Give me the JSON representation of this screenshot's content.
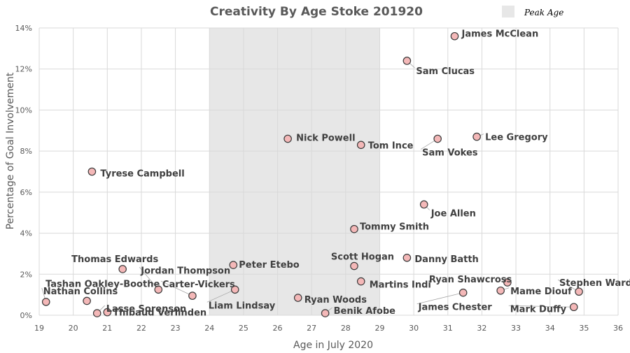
{
  "chart_data": {
    "type": "scatter",
    "title": "Creativity By Age Stoke 201920",
    "xlabel": "Age in July 2020",
    "ylabel": "Percentage of Goal Involvement",
    "xlim": [
      19,
      36
    ],
    "ylim": [
      0,
      14
    ],
    "x_ticks": [
      19,
      20,
      21,
      22,
      23,
      24,
      25,
      26,
      27,
      28,
      29,
      30,
      31,
      32,
      33,
      34,
      35,
      36
    ],
    "y_ticks": [
      0,
      2,
      4,
      6,
      8,
      10,
      12,
      14
    ],
    "y_tick_labels": [
      "0%",
      "2%",
      "4%",
      "6%",
      "8%",
      "10%",
      "12%",
      "14%"
    ],
    "grid": true,
    "legend": {
      "label": "Peak Age",
      "position": "top-right",
      "color": "#e7e7e7"
    },
    "peak_age_band": [
      24,
      29
    ],
    "point_color": "#f4b8b8",
    "points": [
      {
        "name": "James McClean",
        "x": 31.2,
        "y": 13.6
      },
      {
        "name": "Sam Clucas",
        "x": 29.8,
        "y": 12.4
      },
      {
        "name": "Lee Gregory",
        "x": 31.85,
        "y": 8.7
      },
      {
        "name": "Sam Vokes",
        "x": 30.7,
        "y": 8.6
      },
      {
        "name": "Nick Powell",
        "x": 26.3,
        "y": 8.6
      },
      {
        "name": "Tom Ince",
        "x": 28.45,
        "y": 8.3
      },
      {
        "name": "Tyrese Campbell",
        "x": 20.55,
        "y": 7.0
      },
      {
        "name": "Joe Allen",
        "x": 30.3,
        "y": 5.4
      },
      {
        "name": "Tommy Smith",
        "x": 28.25,
        "y": 4.2
      },
      {
        "name": "Danny Batth",
        "x": 29.8,
        "y": 2.8
      },
      {
        "name": "Scott Hogan",
        "x": 28.25,
        "y": 2.4
      },
      {
        "name": "Peter Etebo",
        "x": 24.7,
        "y": 2.45
      },
      {
        "name": "Thomas Edwards",
        "x": 21.45,
        "y": 2.25
      },
      {
        "name": "Jordan Thompson",
        "x": 22.5,
        "y": 1.25
      },
      {
        "name": "Carter-Vickers",
        "x": 23.5,
        "y": 0.95
      },
      {
        "name": "Liam Lindsay",
        "x": 24.75,
        "y": 1.25
      },
      {
        "name": "Martins Indi",
        "x": 28.45,
        "y": 1.65
      },
      {
        "name": "Ryan Shawcross",
        "x": 32.75,
        "y": 1.6
      },
      {
        "name": "Mame Diouf",
        "x": 32.55,
        "y": 1.2
      },
      {
        "name": "Stephen Ward",
        "x": 34.85,
        "y": 1.15
      },
      {
        "name": "James Chester",
        "x": 31.45,
        "y": 1.1
      },
      {
        "name": "Mark Duffy",
        "x": 34.7,
        "y": 0.4
      },
      {
        "name": "Ryan Woods",
        "x": 26.6,
        "y": 0.85
      },
      {
        "name": "Benik Afobe",
        "x": 27.4,
        "y": 0.1
      },
      {
        "name": "Tashan Oakley-Boothe",
        "x": 20.4,
        "y": 0.7
      },
      {
        "name": "Nathan Collins",
        "x": 19.2,
        "y": 0.65
      },
      {
        "name": "Lasse Sorenson",
        "x": 20.7,
        "y": 0.1
      },
      {
        "name": "Thibaud Verlinden",
        "x": 21.0,
        "y": 0.15
      }
    ]
  }
}
